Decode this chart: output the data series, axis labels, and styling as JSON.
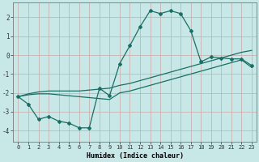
{
  "xlabel": "Humidex (Indice chaleur)",
  "background_color": "#c8e8e8",
  "grid_color": "#aed0d0",
  "line_color": "#1a6e64",
  "x_data": [
    0,
    1,
    2,
    3,
    4,
    5,
    6,
    7,
    8,
    9,
    10,
    11,
    12,
    13,
    14,
    15,
    16,
    17,
    18,
    19,
    20,
    21,
    22,
    23
  ],
  "line1_y": [
    -2.2,
    -2.6,
    -3.4,
    -3.25,
    -3.5,
    -3.6,
    -3.85,
    -3.85,
    -1.75,
    -2.15,
    -0.45,
    0.5,
    1.5,
    2.35,
    2.2,
    2.35,
    2.2,
    1.3,
    -0.35,
    -0.1,
    -0.15,
    -0.2,
    -0.2,
    -0.55
  ],
  "line2_y": [
    -2.2,
    -2.1,
    -2.05,
    -2.05,
    -2.1,
    -2.15,
    -2.2,
    -2.25,
    -2.3,
    -2.35,
    -2.0,
    -1.9,
    -1.75,
    -1.6,
    -1.45,
    -1.3,
    -1.15,
    -1.0,
    -0.85,
    -0.7,
    -0.55,
    -0.4,
    -0.25,
    -0.65
  ],
  "line3_y": [
    -2.2,
    -2.05,
    -1.95,
    -1.9,
    -1.9,
    -1.9,
    -1.9,
    -1.85,
    -1.8,
    -1.75,
    -1.6,
    -1.5,
    -1.35,
    -1.2,
    -1.05,
    -0.9,
    -0.75,
    -0.6,
    -0.45,
    -0.3,
    -0.15,
    0.0,
    0.15,
    0.25
  ],
  "ylim": [
    -4.6,
    2.8
  ],
  "xlim": [
    -0.5,
    23.5
  ],
  "yticks": [
    -4,
    -3,
    -2,
    -1,
    0,
    1,
    2
  ],
  "xticks": [
    0,
    1,
    2,
    3,
    4,
    5,
    6,
    7,
    8,
    9,
    10,
    11,
    12,
    13,
    14,
    15,
    16,
    17,
    18,
    19,
    20,
    21,
    22,
    23
  ]
}
